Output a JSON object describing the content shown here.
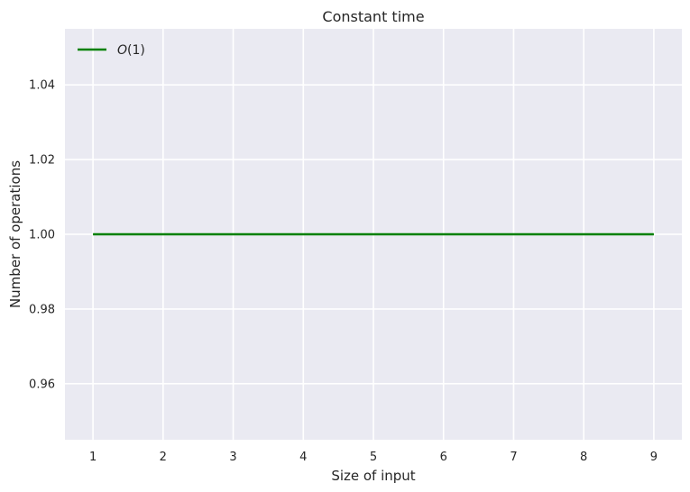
{
  "chart_data": {
    "type": "line",
    "title": "Constant time",
    "xlabel": "Size of input",
    "ylabel": "Number of operations",
    "x": [
      1,
      2,
      3,
      4,
      5,
      6,
      7,
      8,
      9
    ],
    "xlim": [
      0.6,
      9.4
    ],
    "ylim": [
      0.945,
      1.055
    ],
    "xticks": [
      1,
      2,
      3,
      4,
      5,
      6,
      7,
      8,
      9
    ],
    "yticks": [
      0.96,
      0.98,
      1.0,
      1.02,
      1.04
    ],
    "ytick_labels": [
      "0.96",
      "0.98",
      "1.00",
      "1.02",
      "1.04"
    ],
    "series": [
      {
        "name_prefix": "O",
        "name_suffix": "(1)",
        "color": "#008000",
        "values": [
          1,
          1,
          1,
          1,
          1,
          1,
          1,
          1,
          1
        ]
      }
    ],
    "legend_position": "top-left",
    "grid": true,
    "background": "#eaeaf2",
    "grid_color": "#ffffff"
  }
}
